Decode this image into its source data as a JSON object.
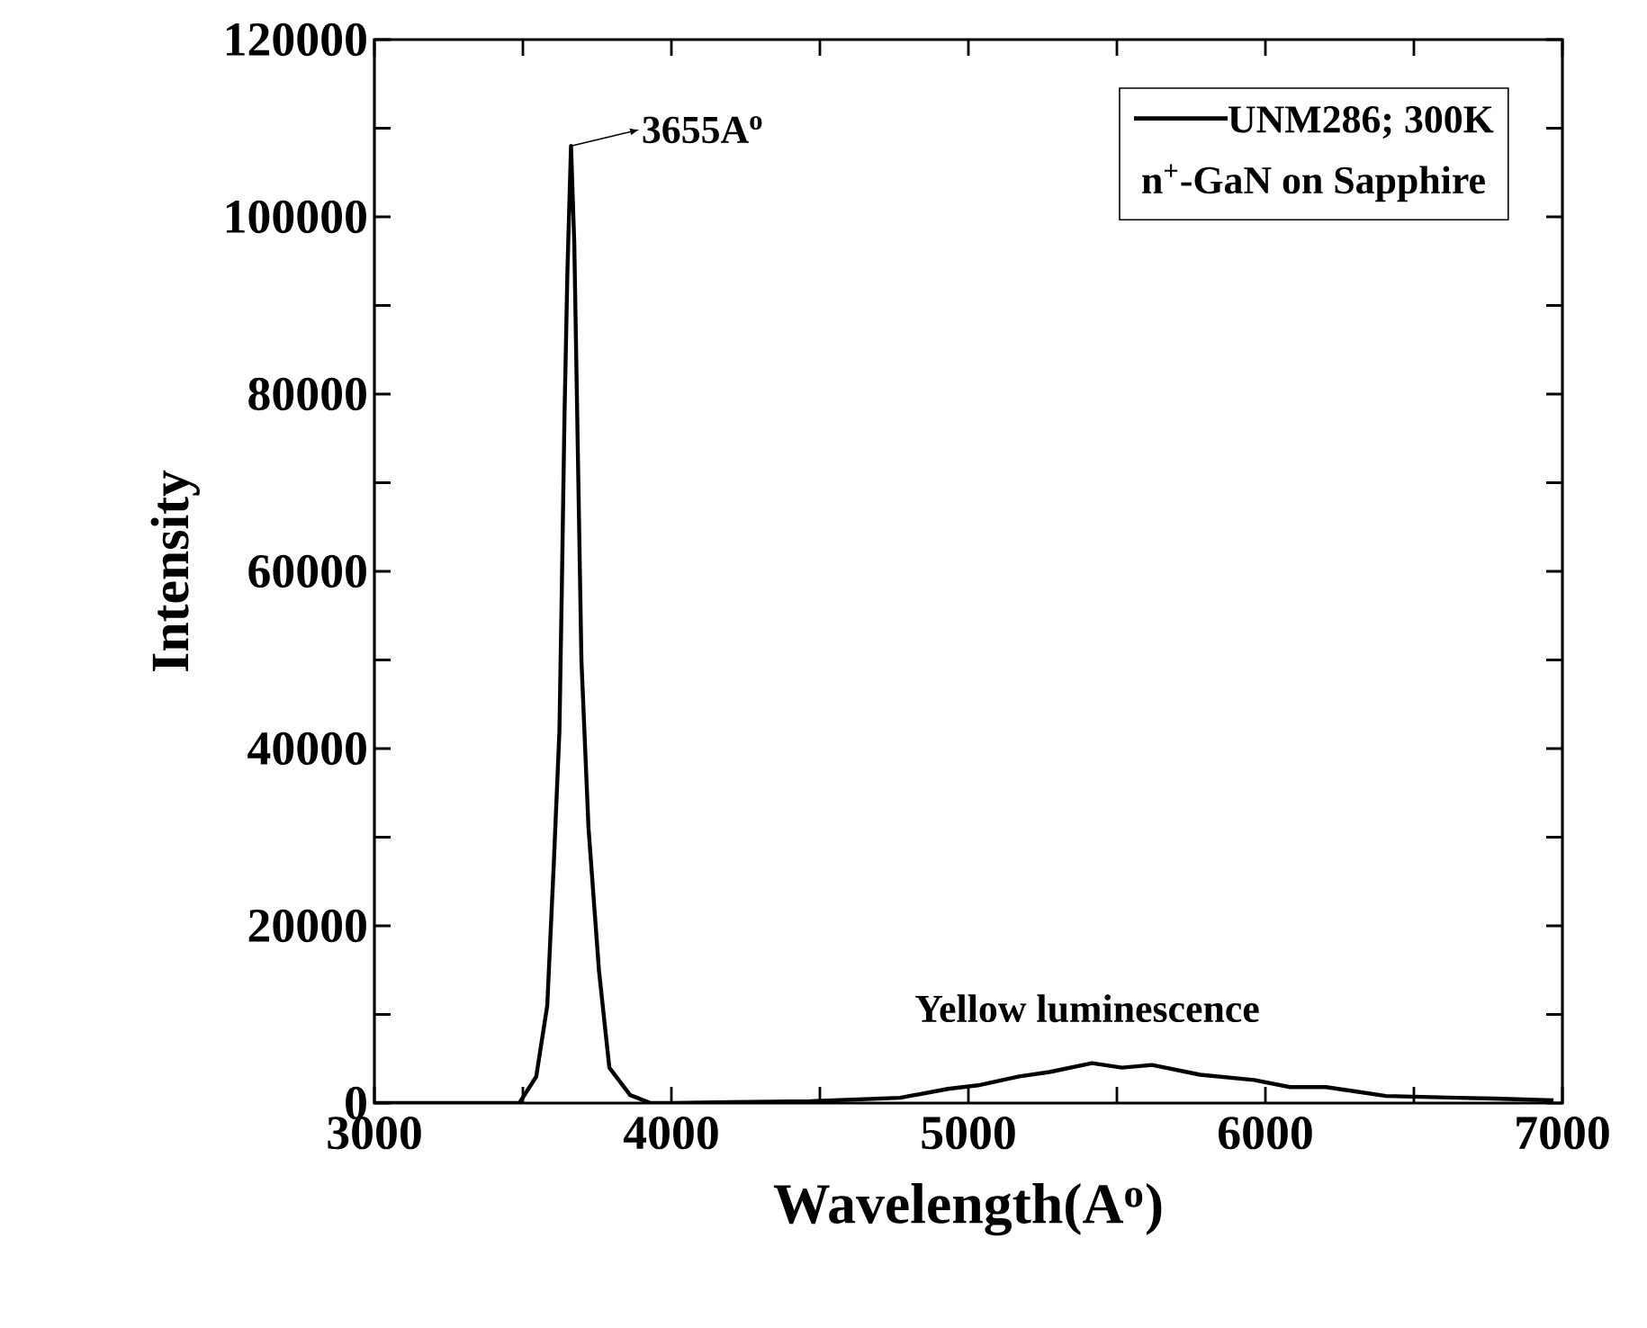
{
  "chart_data": {
    "type": "line",
    "xlabel": "Wavelength(A$^{o}$)",
    "ylabel": "Intensity",
    "xlim": [
      3000,
      7000
    ],
    "ylim": [
      0,
      120000
    ],
    "xticks": [
      3000,
      {
        "value": 3500,
        "label": null
      },
      4000,
      {
        "value": 4500,
        "label": null
      },
      5000,
      {
        "value": 5500,
        "label": null
      },
      6000,
      {
        "value": 6500,
        "label": null
      },
      7000
    ],
    "yticks": [
      0,
      {
        "value": 10000,
        "label": null
      },
      20000,
      {
        "value": 30000,
        "label": null
      },
      40000,
      {
        "value": 50000,
        "label": null
      },
      60000,
      {
        "value": 70000,
        "label": null
      },
      80000,
      {
        "value": 90000,
        "label": null
      },
      100000,
      {
        "value": 110000,
        "label": null
      },
      120000
    ],
    "legend": "top right",
    "marker": "none",
    "line_style": "solid",
    "series": [
      {
        "name": "UNM286; 300K",
        "color": "#000000",
        "x": [
          3000,
          3300,
          3488,
          3545,
          3582,
          3604,
          3623,
          3631,
          3640,
          3650,
          3662,
          3673,
          3685,
          3697,
          3721,
          3756,
          3791,
          3861,
          3930,
          4000,
          4200,
          4467,
          4770,
          4931,
          5032,
          5171,
          5273,
          5416,
          5517,
          5618,
          5780,
          5962,
          6083,
          6204,
          6406,
          6648,
          6770,
          6970
        ],
        "values": [
          0,
          0,
          0,
          3000,
          11000,
          27000,
          42000,
          58000,
          77500,
          94000,
          108000,
          97000,
          73500,
          50000,
          31000,
          15000,
          4000,
          900,
          0,
          0,
          100,
          200,
          600,
          1600,
          2000,
          3000,
          3500,
          4500,
          4000,
          4300,
          3200,
          2600,
          1800,
          1800,
          800,
          600,
          500,
          300
        ]
      }
    ],
    "annotations": [
      {
        "text": "3655A$^{o}$",
        "x": 3662,
        "y": 108000
      },
      "Yellow luminescence",
      "n$^{+}$-GaN on Sapphire"
    ]
  }
}
